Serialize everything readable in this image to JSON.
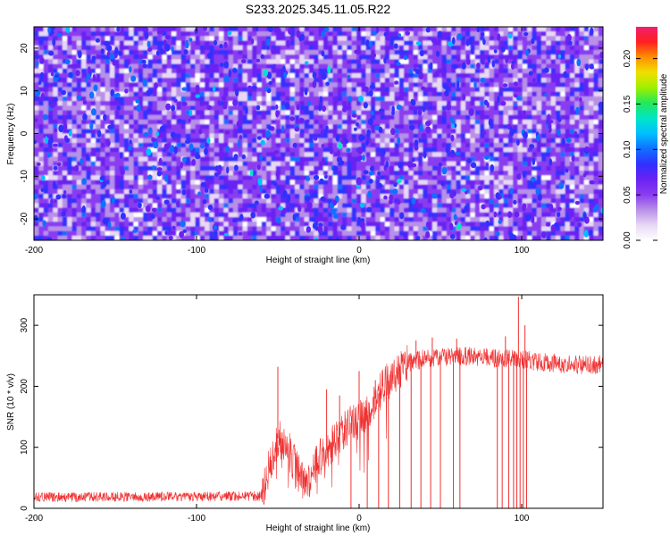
{
  "page_title": "S233.2025.345.11.05.R22",
  "chart_data": [
    {
      "type": "heatmap",
      "title": "S233.2025.345.11.05.R22",
      "xlabel": "Height of straight line (km)",
      "ylabel": "Frequency (Hz)",
      "xlim": [
        -200,
        150
      ],
      "ylim": [
        -25,
        25
      ],
      "xticks": [
        -200,
        -100,
        0,
        100
      ],
      "yticks": [
        -20,
        -10,
        0,
        10,
        20
      ],
      "x_tick_labels": [
        "-200",
        "-100",
        "0",
        "100"
      ],
      "y_tick_labels": [
        "-20",
        "-10",
        "0",
        "10",
        "20"
      ],
      "colorbar": {
        "label": "Normalized spectral amplitude",
        "range": [
          0,
          0.235
        ],
        "ticks": [
          0.0,
          0.05,
          0.1,
          0.15,
          0.2
        ],
        "tick_labels": [
          "0.00",
          "0.05",
          "0.10",
          "0.15",
          "0.20"
        ]
      },
      "palette": [
        "#ffffff",
        "#e8d8f4",
        "#b890e8",
        "#8a3cf0",
        "#6a22f2",
        "#3030ff",
        "#1070ff",
        "#00bfff",
        "#00e6c8",
        "#22e85a",
        "#9ef000",
        "#f0e000",
        "#ff9000",
        "#ff2020",
        "#f0206e"
      ],
      "notes": "Noise-like amplitude field, mostly 0.02-0.10 with scattered peaks near 0.12"
    },
    {
      "type": "line",
      "xlabel": "Height of straight line (km)",
      "ylabel": "SNR (10 * v/v)",
      "xlim": [
        -200,
        150
      ],
      "ylim": [
        0,
        350
      ],
      "xticks": [
        -200,
        -100,
        0,
        100
      ],
      "yticks": [
        0,
        100,
        200,
        300
      ],
      "x_tick_labels": [
        "-200",
        "-100",
        "0",
        "100"
      ],
      "y_tick_labels": [
        "0",
        "100",
        "200",
        "300"
      ],
      "series": [
        {
          "name": "SNR",
          "color": "#f03030",
          "profile_x": [
            -200,
            -60,
            -56,
            -50,
            -45,
            -40,
            -35,
            -30,
            -25,
            -20,
            -15,
            -10,
            -5,
            0,
            5,
            10,
            15,
            20,
            25,
            30,
            35,
            40,
            50,
            60,
            70,
            80,
            90,
            100,
            110,
            120,
            130,
            140,
            150
          ],
          "profile_y": [
            18,
            20,
            60,
            115,
            105,
            75,
            45,
            50,
            80,
            95,
            110,
            125,
            140,
            145,
            160,
            180,
            200,
            215,
            225,
            238,
            242,
            245,
            248,
            250,
            249,
            247,
            246,
            245,
            240,
            238,
            236,
            235,
            236
          ],
          "spikes": [
            {
              "x": -50,
              "y": 232
            },
            {
              "x": -20,
              "y": 195
            },
            {
              "x": -12,
              "y": 185
            },
            {
              "x": 0,
              "y": 225
            },
            {
              "x": 10,
              "y": 210
            },
            {
              "x": 35,
              "y": 275
            },
            {
              "x": 45,
              "y": 280
            },
            {
              "x": 60,
              "y": 278
            },
            {
              "x": 90,
              "y": 282
            },
            {
              "x": 98,
              "y": 347
            },
            {
              "x": 102,
              "y": 300
            }
          ],
          "dropouts_x": [
            -5,
            5,
            12,
            18,
            25,
            32,
            38,
            44,
            50,
            58,
            62,
            85,
            88,
            92,
            95,
            97,
            99,
            101,
            103
          ],
          "noise_amplitude": 12
        }
      ]
    }
  ]
}
